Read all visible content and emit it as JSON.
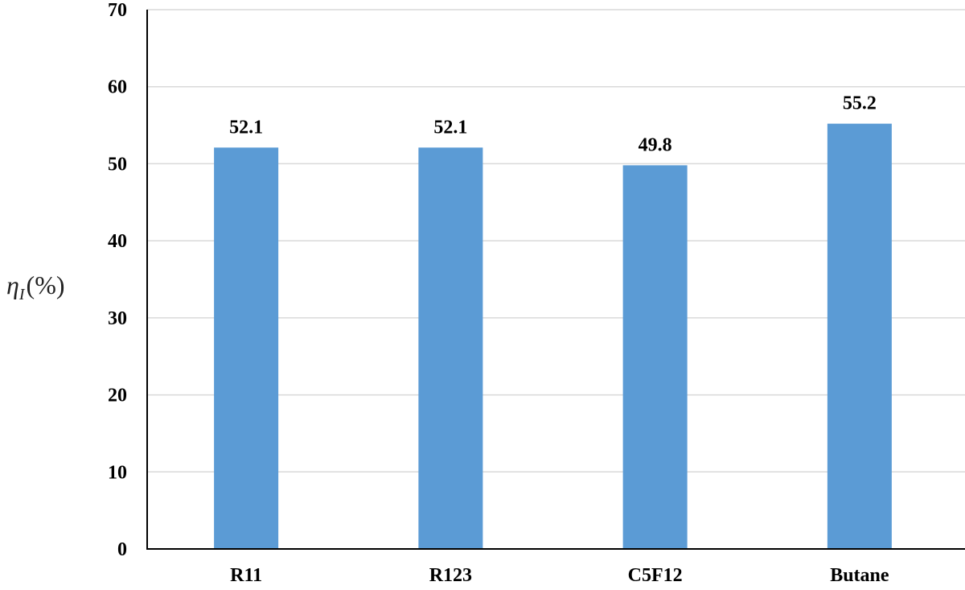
{
  "chart_data": {
    "type": "bar",
    "title": "",
    "xlabel": "",
    "ylabel_symbol": "η",
    "ylabel_subscript": "I",
    "ylabel_unit": "(%)",
    "categories": [
      "R11",
      "R123",
      "C5F12",
      "Butane"
    ],
    "values": [
      52.1,
      52.1,
      49.8,
      55.2
    ],
    "data_labels": [
      "52.1",
      "52.1",
      "49.8",
      "55.2"
    ],
    "ylim": [
      0,
      70
    ],
    "yticks": [
      0,
      10,
      20,
      30,
      40,
      50,
      60,
      70
    ],
    "ytick_labels": [
      "0",
      "10",
      "20",
      "30",
      "40",
      "50",
      "60",
      "70"
    ],
    "grid": true,
    "legend": "none",
    "bar_color": "#5b9bd5",
    "grid_color": "#d9d9d9",
    "axis_color": "#000000"
  }
}
